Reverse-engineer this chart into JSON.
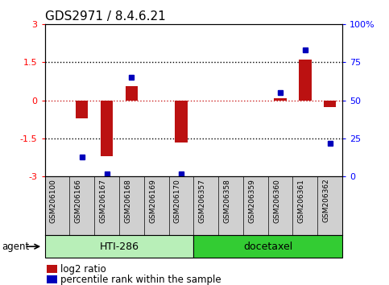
{
  "title": "GDS2971 / 8.4.6.21",
  "samples": [
    "GSM206100",
    "GSM206166",
    "GSM206167",
    "GSM206168",
    "GSM206169",
    "GSM206170",
    "GSM206357",
    "GSM206358",
    "GSM206359",
    "GSM206360",
    "GSM206361",
    "GSM206362"
  ],
  "log2_ratio": [
    0,
    -0.7,
    -2.2,
    0.55,
    0,
    -1.65,
    0,
    0,
    0,
    0.08,
    1.6,
    -0.25
  ],
  "percentile_rank": [
    null,
    13,
    2,
    65,
    null,
    2,
    null,
    null,
    null,
    55,
    83,
    22
  ],
  "ylim": [
    -3,
    3
  ],
  "yticks": [
    -3,
    -1.5,
    0,
    1.5,
    3
  ],
  "ytick_labels": [
    "-3",
    "-1.5",
    "0",
    "1.5",
    "3"
  ],
  "right_yticks": [
    0,
    25,
    50,
    75,
    100
  ],
  "right_ytick_labels": [
    "0",
    "25",
    "50",
    "75",
    "100%"
  ],
  "groups": [
    {
      "label": "HTI-286",
      "start": 0,
      "end": 5,
      "color": "#b8efb8"
    },
    {
      "label": "docetaxel",
      "start": 6,
      "end": 11,
      "color": "#33cc33"
    }
  ],
  "bar_color": "#bb1111",
  "dot_color": "#0000bb",
  "bar_width": 0.5,
  "agent_label": "agent",
  "legend_bar_label": "log2 ratio",
  "legend_dot_label": "percentile rank within the sample",
  "zero_line_color": "#cc2222",
  "dotted_line_color": "#000000",
  "title_fontsize": 11,
  "tick_fontsize": 8,
  "legend_fontsize": 8.5,
  "sample_cell_color": "#d0d0d0",
  "sample_cell_border": "#888888"
}
